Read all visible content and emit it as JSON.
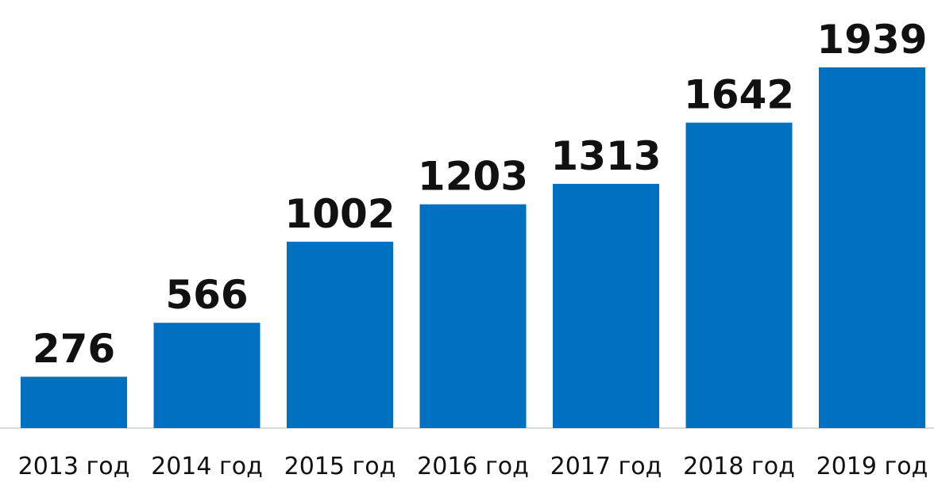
{
  "chart_data": {
    "type": "bar",
    "categories": [
      "2013 год",
      "2014 год",
      "2015 год",
      "2016 год",
      "2017 год",
      "2018 год",
      "2019 год"
    ],
    "values": [
      276,
      566,
      1002,
      1203,
      1313,
      1642,
      1939
    ],
    "color": "#0070c0"
  }
}
